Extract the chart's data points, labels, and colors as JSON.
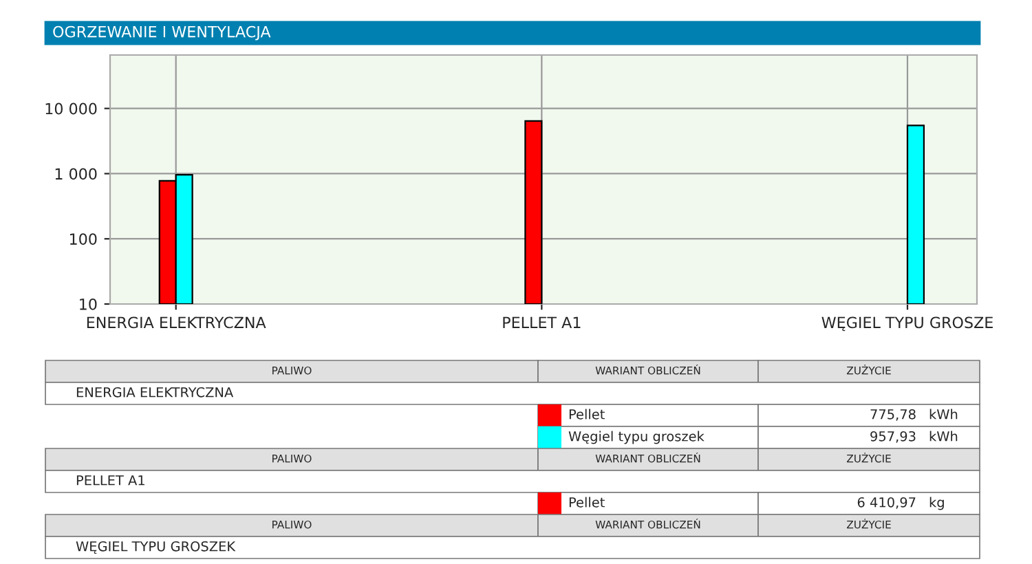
{
  "chart_data": {
    "type": "bar",
    "title": "OGRZEWANIE I WENTYLACJA",
    "categories": [
      "ENERGIA ELEKTRYCZNA",
      "PELLET A1",
      "WĘGIEL TYPU GROSZE"
    ],
    "series": [
      {
        "name": "Pellet",
        "color": "#ff0000",
        "values": [
          775.78,
          6410.97,
          null
        ]
      },
      {
        "name": "Węgiel typu groszek",
        "color": "#00ffff",
        "values": [
          957.93,
          null,
          5500
        ]
      }
    ],
    "log": true,
    "ylim": [
      10,
      66000
    ],
    "yticks": [
      10,
      100,
      {
        "value": 1000,
        "label": "1 000"
      },
      {
        "value": 10000,
        "label": "10 000"
      }
    ],
    "grid": true,
    "legend": "bottom",
    "annotations": [
      "PALIWO",
      "WARIANT OBLICZEŃ",
      "ZUŻYCIE",
      "WĘGIEL TYPU GROSZEK",
      "775,78 kWh",
      "957,93 kWh",
      "6 410,97 kg"
    ]
  }
}
